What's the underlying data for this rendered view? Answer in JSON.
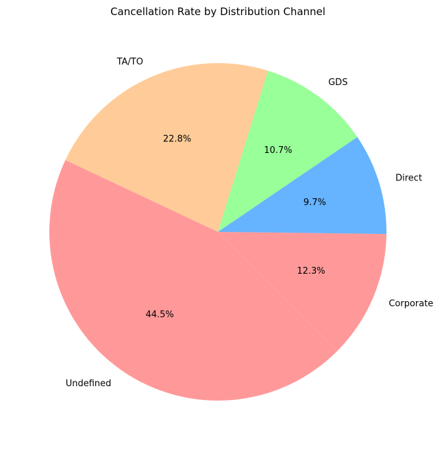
{
  "chart_data": {
    "type": "pie",
    "title": "Cancellation Rate by Distribution Channel",
    "categories": [
      "Corporate",
      "Direct",
      "GDS",
      "TA/TO",
      "Undefined"
    ],
    "values": [
      12.3,
      9.7,
      10.7,
      22.8,
      44.5
    ],
    "percent_labels": [
      "12.3%",
      "9.7%",
      "10.7%",
      "22.8%",
      "44.5%"
    ],
    "colors": [
      "#ff9999",
      "#66b3ff",
      "#99ff99",
      "#ffcc99",
      "#ff9999"
    ],
    "start_angle_deg": -45,
    "direction": "counterclockwise",
    "legend": "none"
  }
}
